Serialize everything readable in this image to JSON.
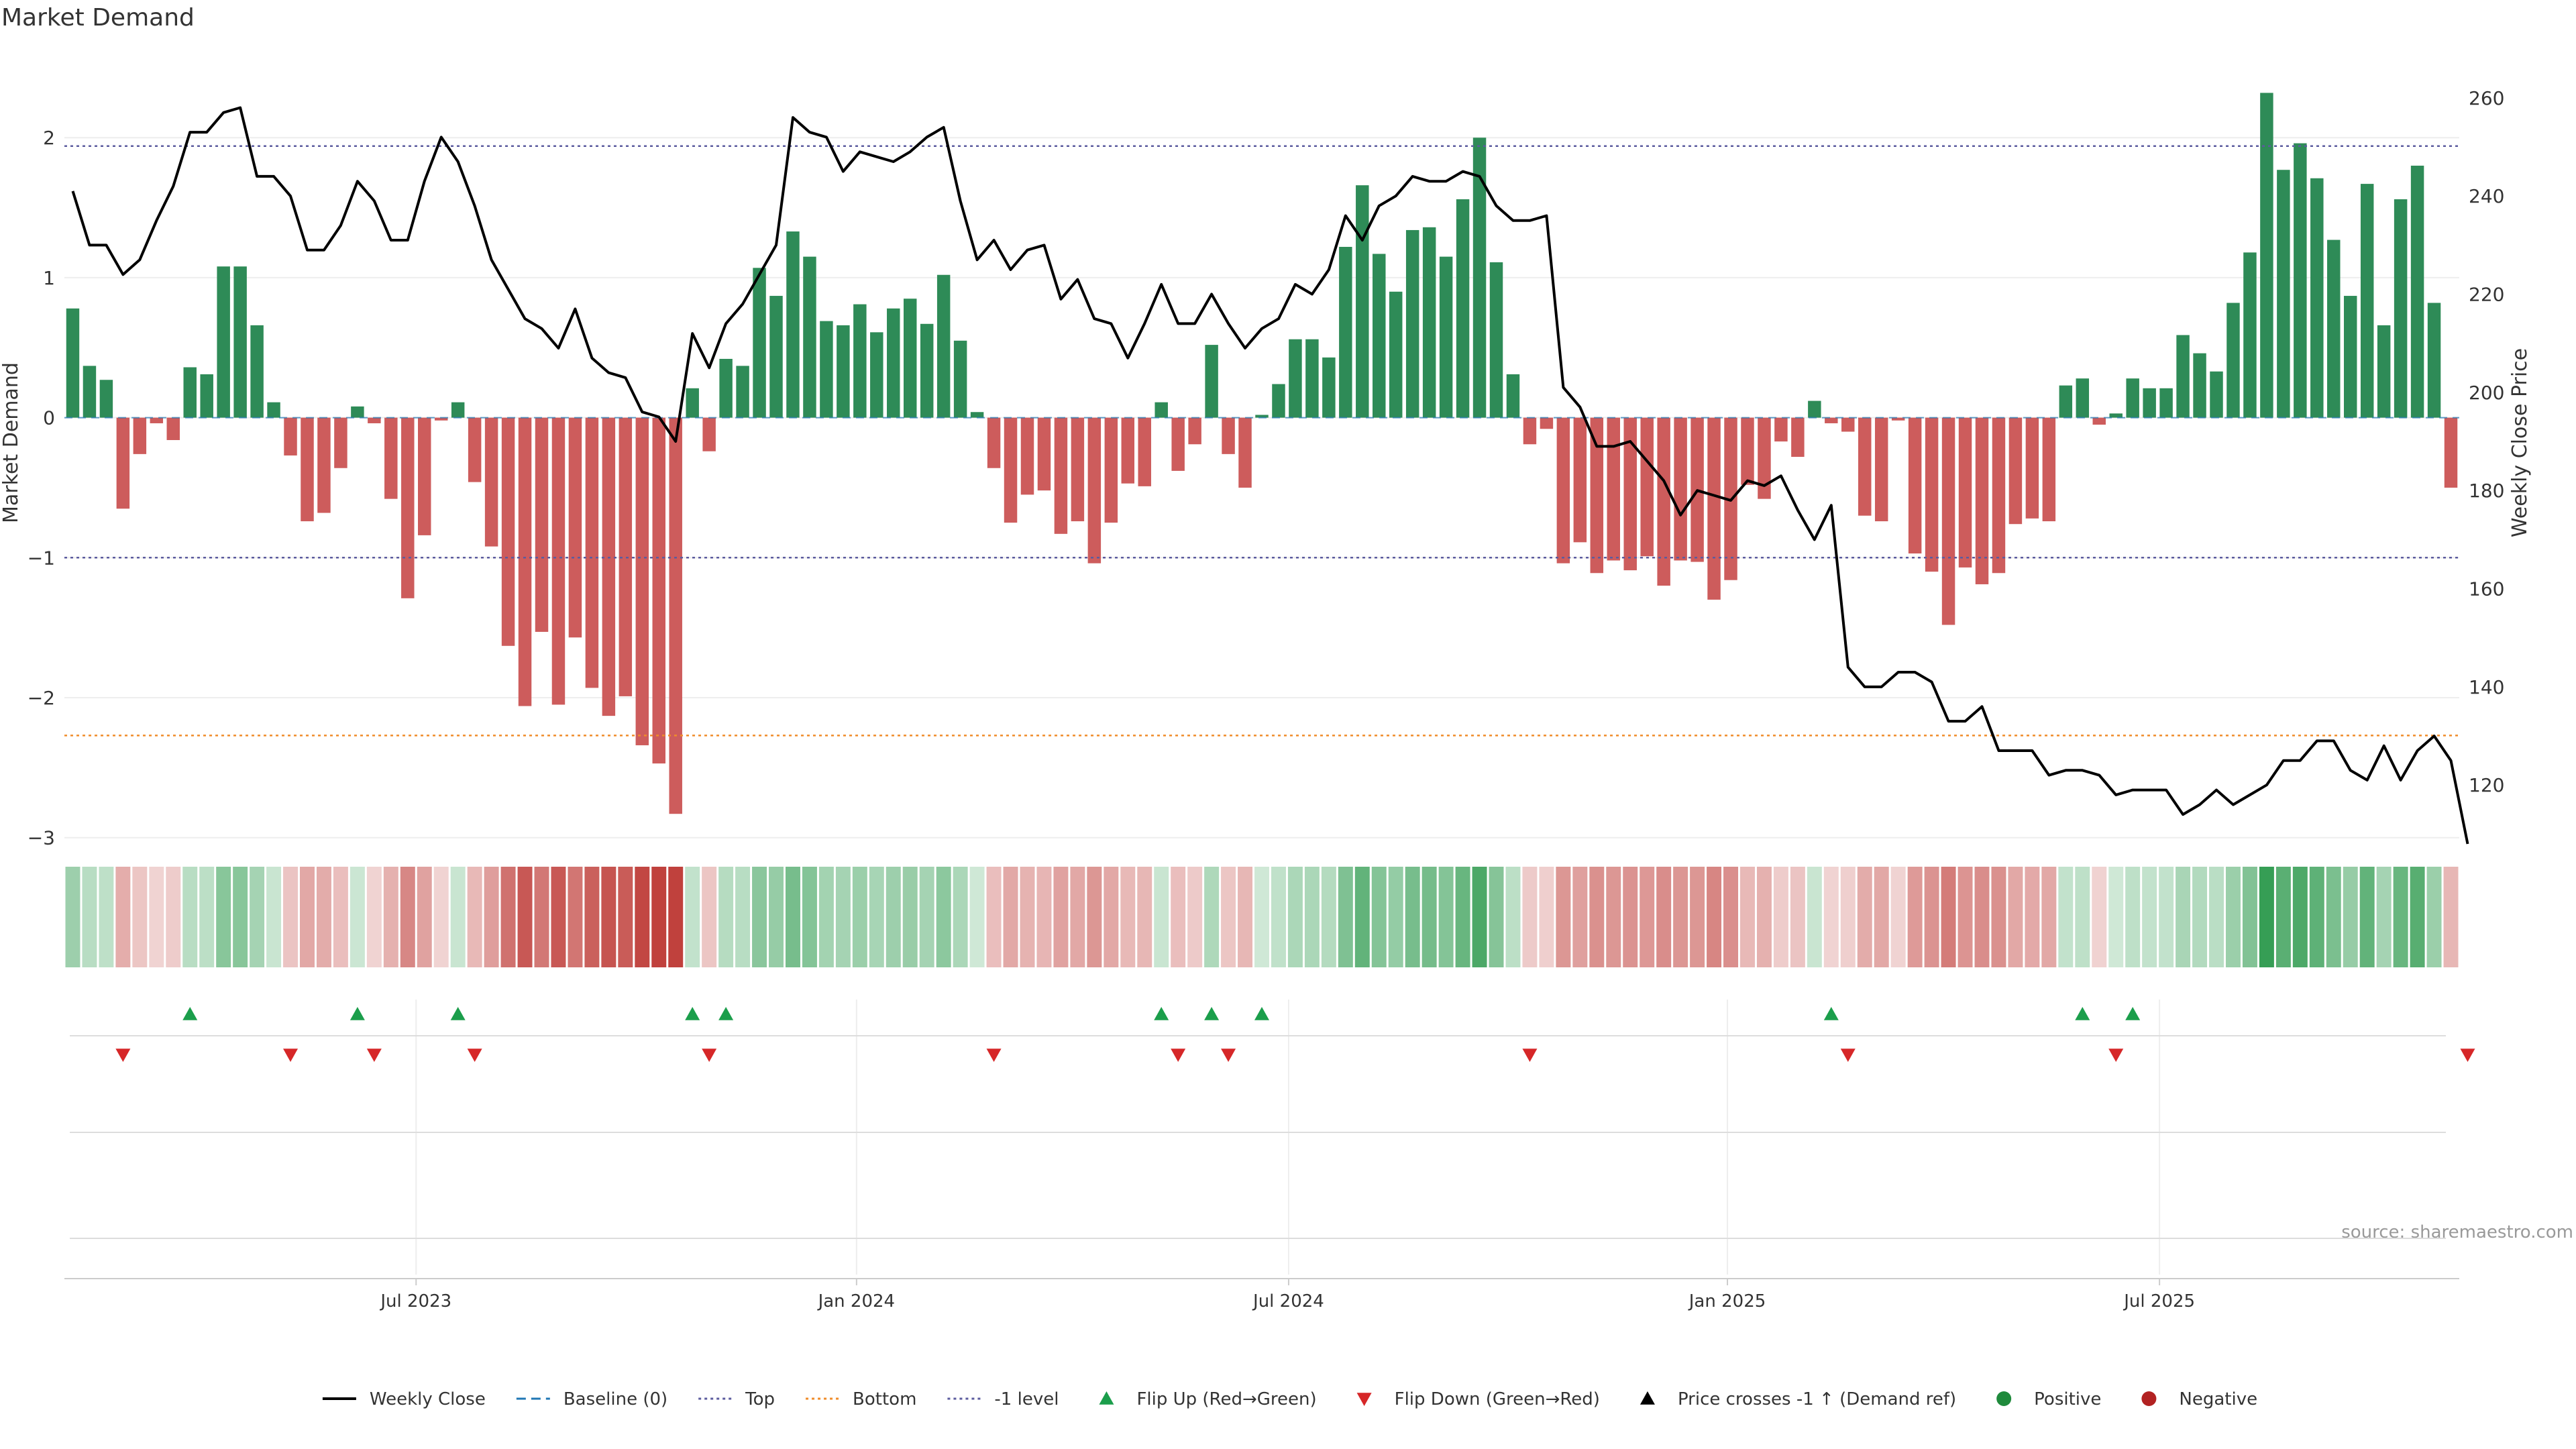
{
  "chart_data": {
    "type": "bar",
    "title": "Market Demand",
    "ylabel": "Market Demand",
    "y2label": "Weekly Close Price",
    "ylim": [
      -3.15,
      2.6
    ],
    "y2lim": [
      105,
      269
    ],
    "yticks": [
      2,
      1,
      0,
      -1,
      -2,
      -3
    ],
    "ytick_labels": [
      "2",
      "1",
      "0",
      "−1",
      "−2",
      "−3"
    ],
    "y2ticks": [
      260,
      240,
      220,
      200,
      180,
      160,
      140,
      120
    ],
    "xticks": [
      {
        "i": 20.5,
        "label": "Jul 2023"
      },
      {
        "i": 46.8,
        "label": "Jan 2024"
      },
      {
        "i": 72.6,
        "label": "Jul 2024"
      },
      {
        "i": 98.8,
        "label": "Jan 2025"
      },
      {
        "i": 124.6,
        "label": "Jul 2025"
      }
    ],
    "reference_lines": {
      "top": 1.94,
      "bottom": -2.27,
      "minus_one": -1.0,
      "baseline": 0
    },
    "series": [
      {
        "name": "Market Demand",
        "values": [
          0.78,
          0.37,
          0.27,
          -0.65,
          -0.26,
          -0.04,
          -0.16,
          0.36,
          0.31,
          1.08,
          1.08,
          0.66,
          0.11,
          -0.27,
          -0.74,
          -0.68,
          -0.36,
          0.08,
          -0.04,
          -0.58,
          -1.29,
          -0.84,
          -0.02,
          0.11,
          -0.46,
          -0.92,
          -1.63,
          -2.06,
          -1.53,
          -2.05,
          -1.57,
          -1.93,
          -2.13,
          -1.99,
          -2.34,
          -2.47,
          -2.83,
          0.21,
          -0.24,
          0.42,
          0.37,
          1.07,
          0.87,
          1.33,
          1.15,
          0.69,
          0.66,
          0.81,
          0.61,
          0.78,
          0.85,
          0.67,
          1.02,
          0.55,
          0.04,
          -0.36,
          -0.75,
          -0.55,
          -0.52,
          -0.83,
          -0.74,
          -1.04,
          -0.75,
          -0.47,
          -0.49,
          0.11,
          -0.38,
          -0.19,
          0.52,
          -0.26,
          -0.5,
          0.02,
          0.24,
          0.56,
          0.56,
          0.43,
          1.22,
          1.66,
          1.17,
          0.9,
          1.34,
          1.36,
          1.15,
          1.56,
          2.0,
          1.11,
          0.31,
          -0.19,
          -0.08,
          -1.04,
          -0.89,
          -1.11,
          -1.02,
          -1.09,
          -0.99,
          -1.2,
          -1.02,
          -1.03,
          -1.3,
          -1.16,
          -0.48,
          -0.58,
          -0.17,
          -0.28,
          0.12,
          -0.04,
          -0.1,
          -0.7,
          -0.74,
          -0.02,
          -0.97,
          -1.1,
          -1.48,
          -1.07,
          -1.19,
          -1.11,
          -0.76,
          -0.72,
          -0.74,
          0.23,
          0.28,
          -0.05,
          0.03,
          0.28,
          0.21,
          0.21,
          0.59,
          0.46,
          0.33,
          0.82,
          1.18,
          2.32,
          1.77,
          1.96,
          1.71,
          1.27,
          0.87,
          1.67,
          0.66,
          1.56,
          1.8,
          0.82,
          -0.5
        ]
      },
      {
        "name": "Weekly Close",
        "values": [
          241,
          230,
          230,
          224,
          227,
          235,
          242,
          253,
          253,
          257,
          258,
          244,
          244,
          240,
          229,
          229,
          234,
          243,
          239,
          231,
          231,
          243,
          252,
          247,
          238,
          227,
          221,
          215,
          213,
          209,
          217,
          207,
          204,
          203,
          196,
          195,
          190,
          212,
          205,
          214,
          218,
          224,
          230,
          256,
          253,
          252,
          245,
          249,
          248,
          247,
          249,
          252,
          254,
          239,
          227,
          231,
          225,
          229,
          230,
          219,
          223,
          215,
          214,
          207,
          214,
          222,
          214,
          214,
          220,
          214,
          209,
          213,
          215,
          222,
          220,
          225,
          236,
          231,
          238,
          240,
          244,
          243,
          243,
          245,
          244,
          238,
          235,
          235,
          236,
          201,
          197,
          189,
          189,
          190,
          186,
          182,
          175,
          180,
          179,
          178,
          182,
          181,
          183,
          176,
          170,
          177,
          144,
          140,
          140,
          143,
          143,
          141,
          133,
          133,
          136,
          127,
          127,
          127,
          122,
          123,
          123,
          122,
          118,
          119,
          119,
          119,
          114,
          116,
          119,
          116,
          118,
          120,
          125,
          125,
          129,
          129,
          123,
          121,
          128,
          121,
          127,
          130,
          125,
          108
        ]
      }
    ],
    "heatmap_strip": "Market Demand color strip",
    "flip_up_indices": [
      7,
      17,
      23,
      37,
      39,
      65,
      68,
      71,
      105,
      120,
      123
    ],
    "flip_down_indices": [
      3,
      13,
      18,
      24,
      38,
      55,
      66,
      69,
      87,
      106,
      122,
      143
    ],
    "source": "source: sharemaestro.com",
    "legend_position": "bottom-center",
    "legend": [
      {
        "label": "Weekly Close",
        "kind": "line",
        "color": "#000000"
      },
      {
        "label": "Baseline (0)",
        "kind": "dash",
        "color": "#1f77b4"
      },
      {
        "label": "Top",
        "kind": "dot",
        "color": "#5b5b9e"
      },
      {
        "label": "Bottom",
        "kind": "dot",
        "color": "#f08c2a"
      },
      {
        "label": "-1 level",
        "kind": "dot",
        "color": "#5b5b9e"
      },
      {
        "label": "Flip Up (Red→Green)",
        "kind": "up",
        "color": "#1b9e4b"
      },
      {
        "label": "Flip Down (Green→Red)",
        "kind": "down",
        "color": "#d62728"
      },
      {
        "label": "Price crosses -1 ↑ (Demand ref)",
        "kind": "up",
        "color": "#000000"
      },
      {
        "label": "Positive",
        "kind": "dot-marker",
        "color": "#1f8a3c"
      },
      {
        "label": "Negative",
        "kind": "dot-marker",
        "color": "#b22222"
      }
    ],
    "colors": {
      "positive": "#2e8b57",
      "negative": "#cd5c5c",
      "line": "#000000",
      "grid": "#eeeeee",
      "axis": "#cccccc",
      "text": "#333333"
    }
  }
}
